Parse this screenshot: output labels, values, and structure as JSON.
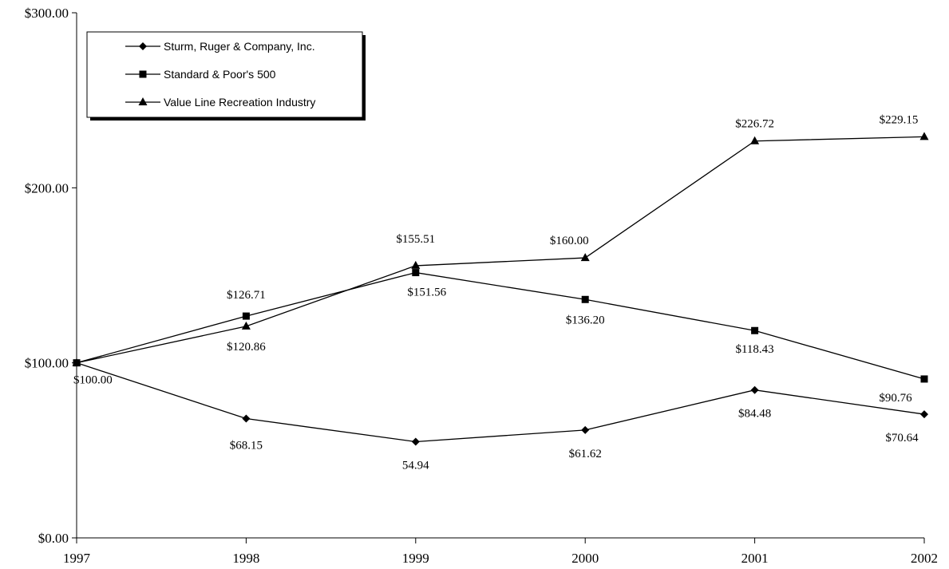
{
  "chart_data": {
    "type": "line",
    "categories": [
      "1997",
      "1998",
      "1999",
      "2000",
      "2001",
      "2002"
    ],
    "ylim": [
      0,
      300
    ],
    "y_ticks": [
      "$0.00",
      "$100.00",
      "$200.00",
      "$300.00"
    ],
    "grid": false,
    "legend_position": "top-left",
    "series": [
      {
        "name": "Sturm, Ruger & Company, Inc.",
        "marker": "diamond",
        "values": [
          100.0,
          68.15,
          54.94,
          61.62,
          84.48,
          70.64
        ],
        "labels": [
          "",
          "$68.15",
          "54.94",
          "$61.62",
          "$84.48",
          "$70.64"
        ]
      },
      {
        "name": "Standard & Poor's 500",
        "marker": "square",
        "values": [
          100.0,
          126.71,
          151.56,
          136.2,
          118.43,
          90.76
        ],
        "labels": [
          "$100.00",
          "$126.71",
          "$151.56",
          "$136.20",
          "$118.43",
          "$90.76"
        ]
      },
      {
        "name": "Value Line Recreation Industry",
        "marker": "triangle",
        "values": [
          100.0,
          120.86,
          155.51,
          160.0,
          226.72,
          229.15
        ],
        "labels": [
          "",
          "$120.86",
          "$155.51",
          "$160.00",
          "$226.72",
          "$229.15"
        ]
      }
    ]
  }
}
